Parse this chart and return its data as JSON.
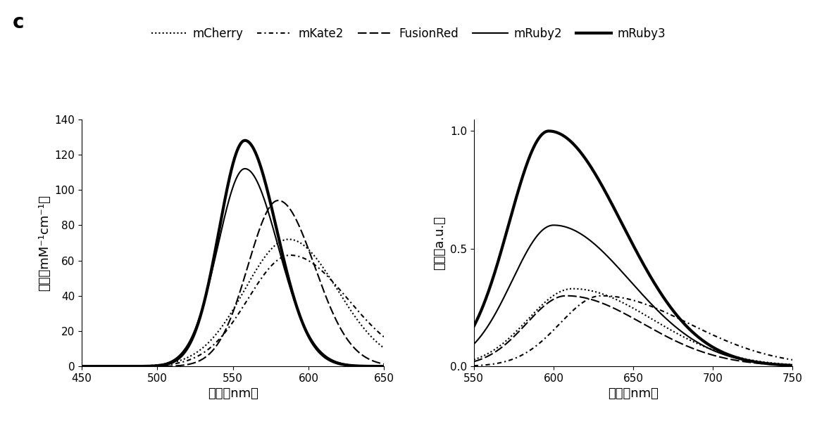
{
  "title_label": "c",
  "legend_entries": [
    "mCherry",
    "mKate2",
    "FusionRed",
    "mRuby2",
    "mRuby3"
  ],
  "left_plot": {
    "xlabel": "波长（nm）",
    "ylabel": "吸收（mM⁻¹cm⁻¹）",
    "xlim": [
      450,
      650
    ],
    "ylim": [
      0,
      140
    ],
    "xticks": [
      450,
      500,
      550,
      600,
      650
    ],
    "yticks": [
      0,
      20,
      40,
      60,
      80,
      100,
      120,
      140
    ],
    "curves": {
      "mCherry": {
        "peak": 587,
        "peak_val": 72,
        "sigma_l": 29,
        "sigma_r": 32
      },
      "mKate2": {
        "peak": 588,
        "peak_val": 63,
        "sigma_l": 28,
        "sigma_r": 38
      },
      "FusionRed": {
        "peak": 580,
        "peak_val": 94,
        "sigma_l": 20,
        "sigma_r": 24
      },
      "mRuby2": {
        "peak": 558,
        "peak_val": 112,
        "sigma_l": 18,
        "sigma_r": 22
      },
      "mRuby3": {
        "peak": 558,
        "peak_val": 128,
        "sigma_l": 17,
        "sigma_r": 21
      }
    }
  },
  "right_plot": {
    "xlabel": "波长（nm）",
    "ylabel": "荆光（a.u.）",
    "xlim": [
      550,
      750
    ],
    "ylim": [
      0,
      1.05
    ],
    "xticks": [
      550,
      600,
      650,
      700,
      750
    ],
    "yticks": [
      0.0,
      0.5,
      1.0
    ],
    "curves": {
      "mCherry": {
        "peak": 612,
        "peak_val": 0.33,
        "sigma_l": 28,
        "sigma_r": 50
      },
      "mKate2": {
        "peak": 630,
        "peak_val": 0.3,
        "sigma_l": 26,
        "sigma_r": 55
      },
      "FusionRed": {
        "peak": 608,
        "peak_val": 0.3,
        "sigma_l": 25,
        "sigma_r": 48
      },
      "mRuby2": {
        "peak": 600,
        "peak_val": 0.6,
        "sigma_l": 26,
        "sigma_r": 48
      },
      "mRuby3": {
        "peak": 597,
        "peak_val": 1.0,
        "sigma_l": 25,
        "sigma_r": 46
      }
    }
  },
  "linestyles": {
    "mCherry": {
      "lw": 1.5,
      "ls": "dotted"
    },
    "mKate2": {
      "lw": 1.5,
      "ls": "dashed_short"
    },
    "FusionRed": {
      "lw": 1.5,
      "ls": "dashed_long"
    },
    "mRuby2": {
      "lw": 1.5,
      "ls": "solid"
    },
    "mRuby3": {
      "lw": 3.0,
      "ls": "solid"
    }
  },
  "order": [
    "mCherry",
    "mKate2",
    "FusionRed",
    "mRuby2",
    "mRuby3"
  ],
  "color": "#000000",
  "background": "#ffffff"
}
